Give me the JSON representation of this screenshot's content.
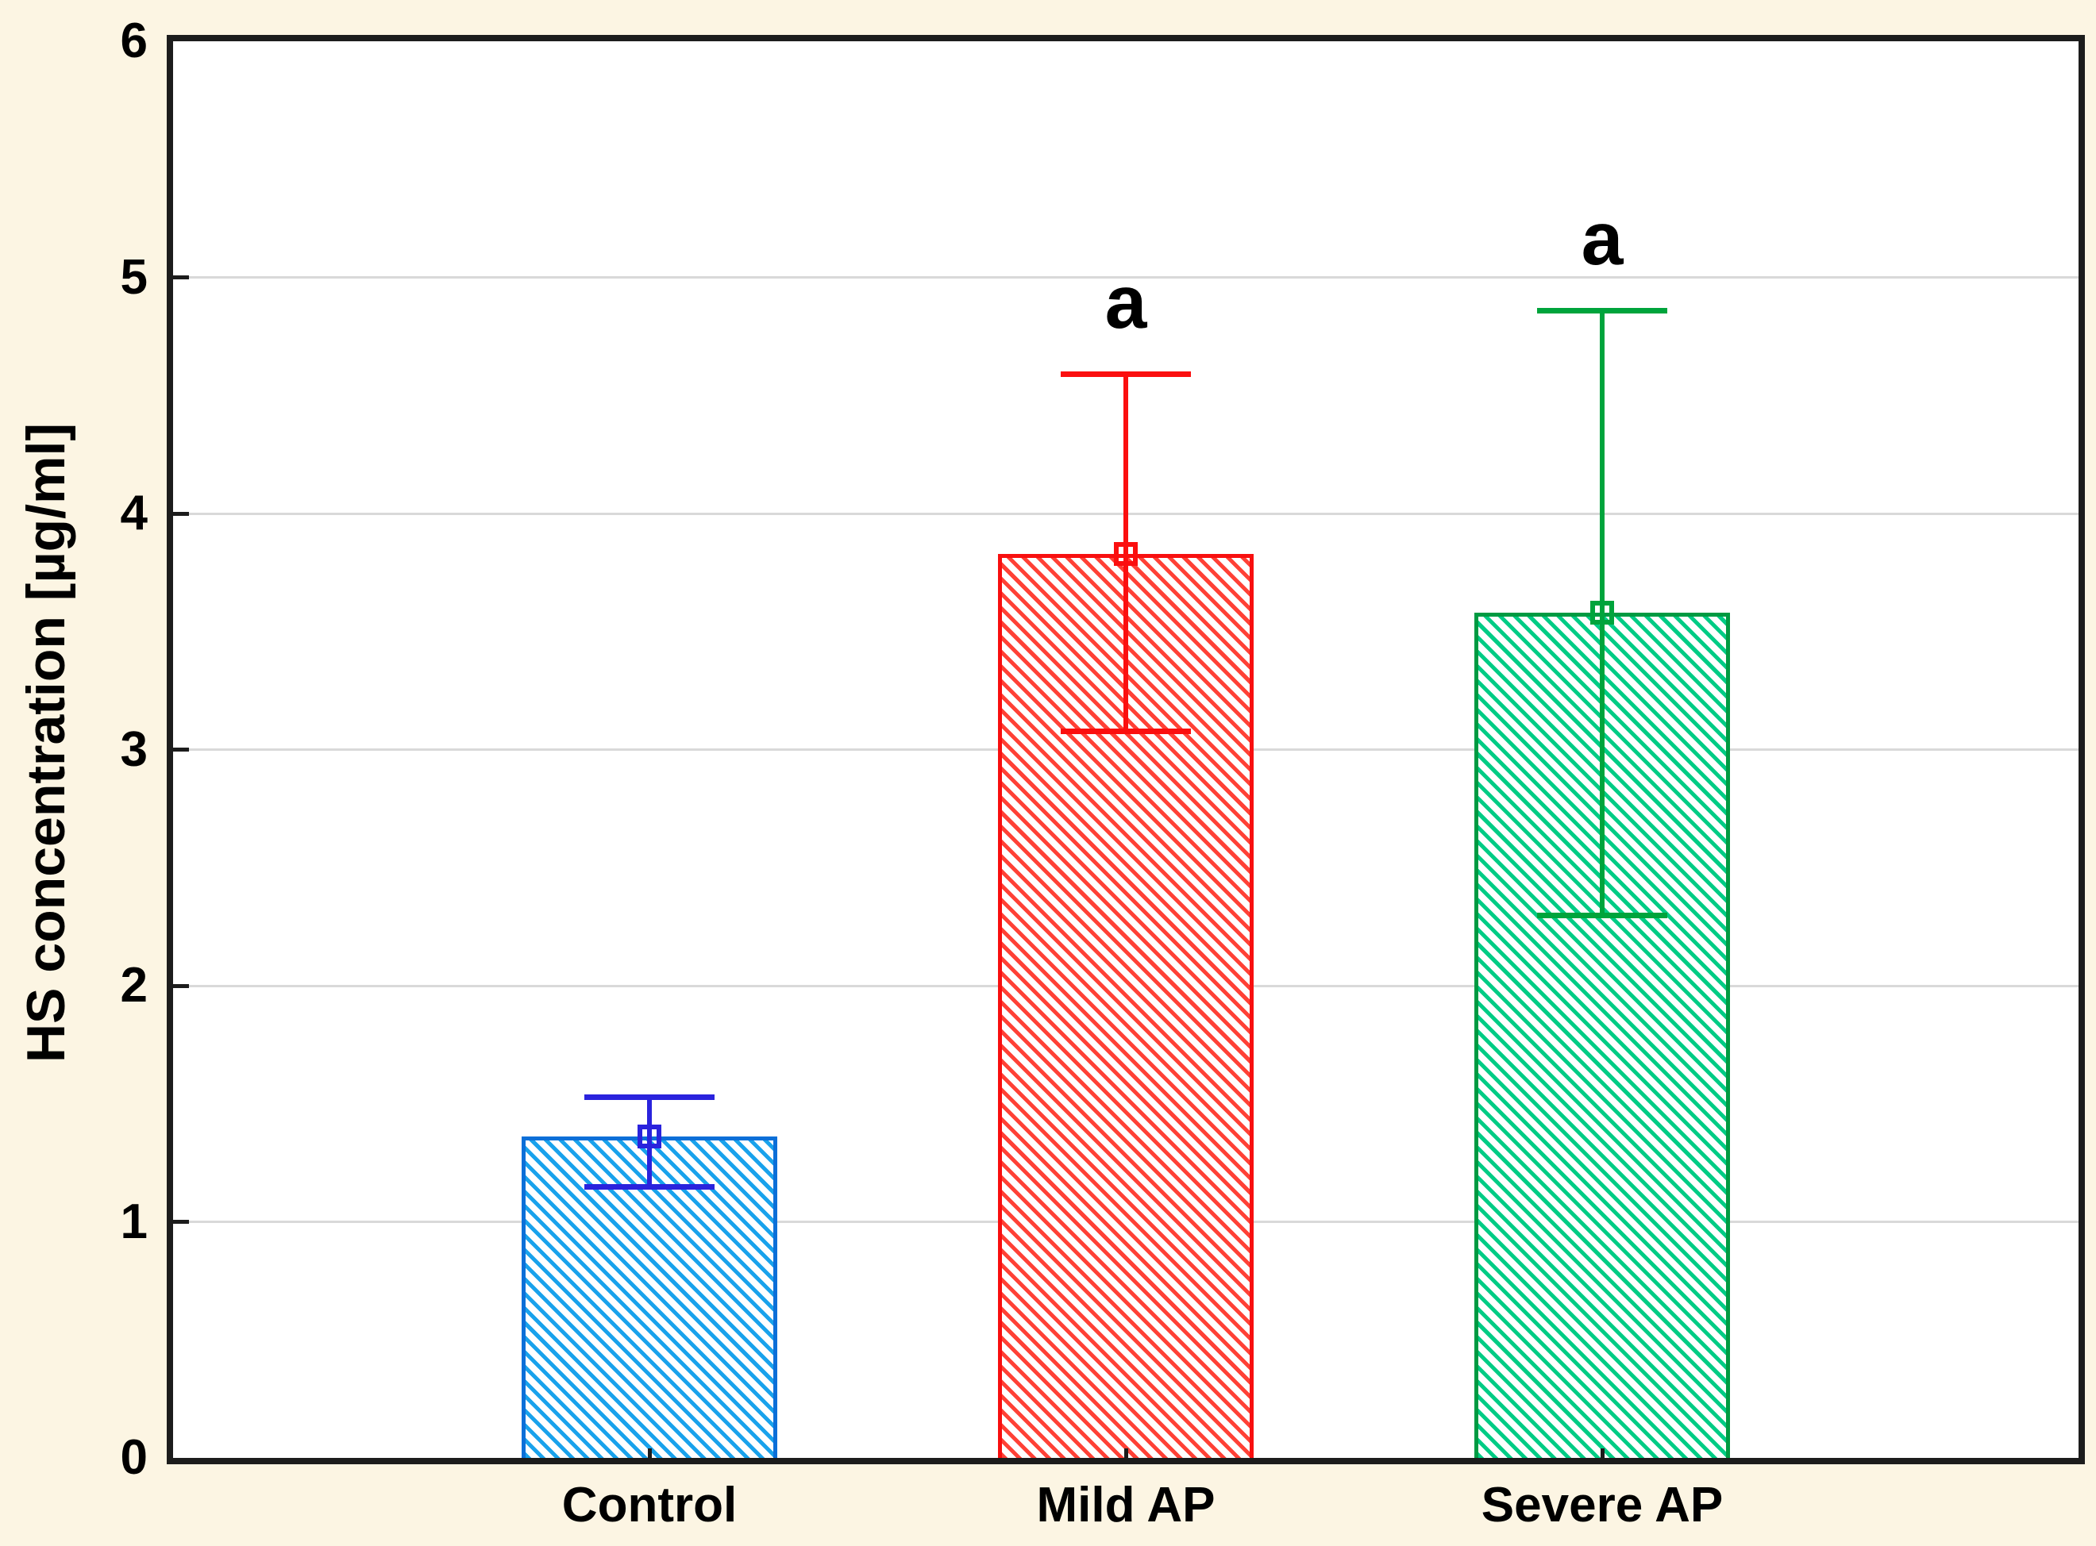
{
  "figure": {
    "background_color": "#fcf5e3",
    "plot_background_color": "#ffffff",
    "axis_color": "#1c1c1c",
    "grid_color": "#d9d9d9",
    "text_color": "#000000"
  },
  "chart_data": {
    "type": "bar",
    "title": "",
    "xlabel": "",
    "ylabel": "HS concentration [µg/ml]",
    "ylim": [
      0,
      6
    ],
    "yticks": [
      0,
      1,
      2,
      3,
      4,
      5,
      6
    ],
    "grid": "horizontal gridlines at integer y values",
    "legend_position": "none",
    "categories": [
      "Control",
      "Mild AP",
      "Severe AP"
    ],
    "series": [
      {
        "name": "HS concentration",
        "values": [
          1.36,
          3.83,
          3.58
        ],
        "error_low": [
          1.15,
          3.08,
          2.3
        ],
        "error_high": [
          1.53,
          4.59,
          4.86
        ]
      }
    ],
    "annotations": [
      {
        "category": "Mild AP",
        "text": "a"
      },
      {
        "category": "Severe AP",
        "text": "a"
      }
    ],
    "bar_styles": [
      {
        "category": "Control",
        "hatch": "backslash-diagonal",
        "hatch_color": "#19a2ec",
        "border_color": "#0c6fd8",
        "error_color": "#2a23dd"
      },
      {
        "category": "Mild AP",
        "hatch": "backslash-diagonal",
        "hatch_color": "#ff4136",
        "border_color": "#f80f0f",
        "error_color": "#fb0f0f"
      },
      {
        "category": "Severe AP",
        "hatch": "backslash-diagonal",
        "hatch_color": "#00cc85",
        "border_color": "#009a42",
        "error_color": "#00a43c"
      }
    ]
  }
}
